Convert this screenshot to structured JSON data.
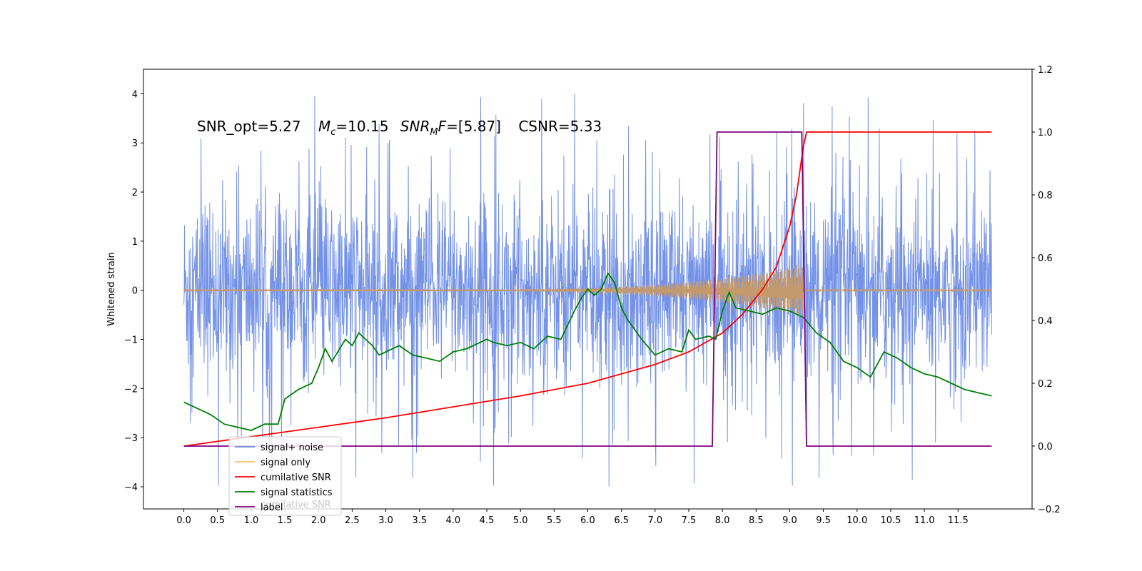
{
  "chart_data": {
    "type": "line",
    "title": "",
    "xlabel": "",
    "ylabel": "Whitened strain",
    "xlim": [
      -0.6,
      12.6
    ],
    "ylim": [
      -4.45,
      4.5
    ],
    "y2lim": [
      -0.2,
      1.2
    ],
    "x_ticks": [
      "0.0",
      "0.5",
      "1.0",
      "1.5",
      "2.0",
      "2.5",
      "3.0",
      "3.5",
      "4.0",
      "4.5",
      "5.0",
      "5.5",
      "6.0",
      "6.5",
      "7.0",
      "7.5",
      "8.0",
      "8.5",
      "9.0",
      "9.5",
      "10.0",
      "10.5",
      "11.0",
      "11.5"
    ],
    "y_ticks": [
      "4",
      "3",
      "2",
      "1",
      "0",
      "−1",
      "−2",
      "−3",
      "−4"
    ],
    "y2_ticks": [
      "1.2",
      "1.0",
      "0.8",
      "0.6",
      "0.4",
      "0.2",
      "0.0",
      "−0.2"
    ],
    "annotation": {
      "snr_opt": "SNR_opt=5.27",
      "mc_sym": "M",
      "mc_sub": "c",
      "mc_val": "=10.15",
      "snrmf_sym": "SNR",
      "snrmf_sub": "M",
      "snrmf_f": "F",
      "snrmf_val": "=[5.87]",
      "csnr": "CSNR=5.33"
    },
    "legend_ghost": "cumilative SNR",
    "colors": {
      "noise": "#6d8ce6",
      "signal": "#f5a623",
      "signal_fill": "#c49a6c",
      "cumsnr": "#ff0000",
      "stats": "#008000",
      "label": "#800080"
    },
    "series": [
      {
        "name": "signal+ noise",
        "axis": "left",
        "kind": "noise",
        "x_range": [
          0,
          12
        ],
        "noise_band": [
          -1.5,
          1.5
        ],
        "max": 4.1,
        "min": -4.0
      },
      {
        "name": "signal only",
        "axis": "left",
        "kind": "chirp",
        "x_range": [
          0,
          12
        ],
        "peak_x": 9.2,
        "peak_amp": 0.5
      },
      {
        "name": "cumilative SNR",
        "axis": "right",
        "x": [
          0.0,
          1.0,
          2.0,
          3.0,
          4.0,
          5.0,
          6.0,
          7.0,
          7.5,
          8.0,
          8.3,
          8.6,
          8.8,
          9.0,
          9.1,
          9.2,
          9.25,
          9.3,
          12.0
        ],
        "y": [
          0.0,
          0.03,
          0.06,
          0.09,
          0.125,
          0.16,
          0.2,
          0.26,
          0.3,
          0.36,
          0.42,
          0.5,
          0.57,
          0.7,
          0.8,
          0.95,
          1.0,
          1.0,
          1.0
        ]
      },
      {
        "name": "signal statistics",
        "axis": "right",
        "x": [
          0.0,
          0.2,
          0.4,
          0.6,
          0.8,
          1.0,
          1.2,
          1.4,
          1.5,
          1.7,
          1.9,
          2.0,
          2.1,
          2.2,
          2.4,
          2.5,
          2.6,
          2.8,
          2.9,
          3.0,
          3.2,
          3.4,
          3.6,
          3.8,
          4.0,
          4.2,
          4.4,
          4.5,
          4.6,
          4.8,
          5.0,
          5.2,
          5.4,
          5.6,
          5.8,
          5.9,
          6.0,
          6.1,
          6.2,
          6.3,
          6.4,
          6.5,
          6.6,
          6.8,
          7.0,
          7.2,
          7.4,
          7.5,
          7.6,
          7.8,
          7.9,
          8.0,
          8.1,
          8.2,
          8.4,
          8.6,
          8.8,
          9.0,
          9.2,
          9.4,
          9.6,
          9.8,
          10.0,
          10.2,
          10.4,
          10.6,
          10.8,
          11.0,
          11.2,
          11.4,
          11.6,
          11.8,
          12.0
        ],
        "y": [
          0.14,
          0.12,
          0.1,
          0.07,
          0.06,
          0.05,
          0.07,
          0.07,
          0.15,
          0.18,
          0.2,
          0.25,
          0.31,
          0.27,
          0.34,
          0.32,
          0.36,
          0.32,
          0.29,
          0.3,
          0.32,
          0.29,
          0.28,
          0.27,
          0.3,
          0.31,
          0.33,
          0.34,
          0.33,
          0.32,
          0.33,
          0.31,
          0.35,
          0.34,
          0.43,
          0.47,
          0.5,
          0.48,
          0.5,
          0.55,
          0.52,
          0.44,
          0.4,
          0.34,
          0.29,
          0.31,
          0.3,
          0.37,
          0.34,
          0.35,
          0.34,
          0.43,
          0.49,
          0.44,
          0.43,
          0.42,
          0.44,
          0.43,
          0.41,
          0.36,
          0.33,
          0.27,
          0.25,
          0.22,
          0.3,
          0.28,
          0.25,
          0.23,
          0.22,
          0.2,
          0.18,
          0.17,
          0.16
        ]
      },
      {
        "name": "label",
        "axis": "right",
        "x": [
          0.0,
          7.85,
          7.92,
          9.18,
          9.25,
          12.0
        ],
        "y": [
          0.0,
          0.0,
          1.0,
          1.0,
          0.0,
          0.0
        ]
      }
    ]
  }
}
